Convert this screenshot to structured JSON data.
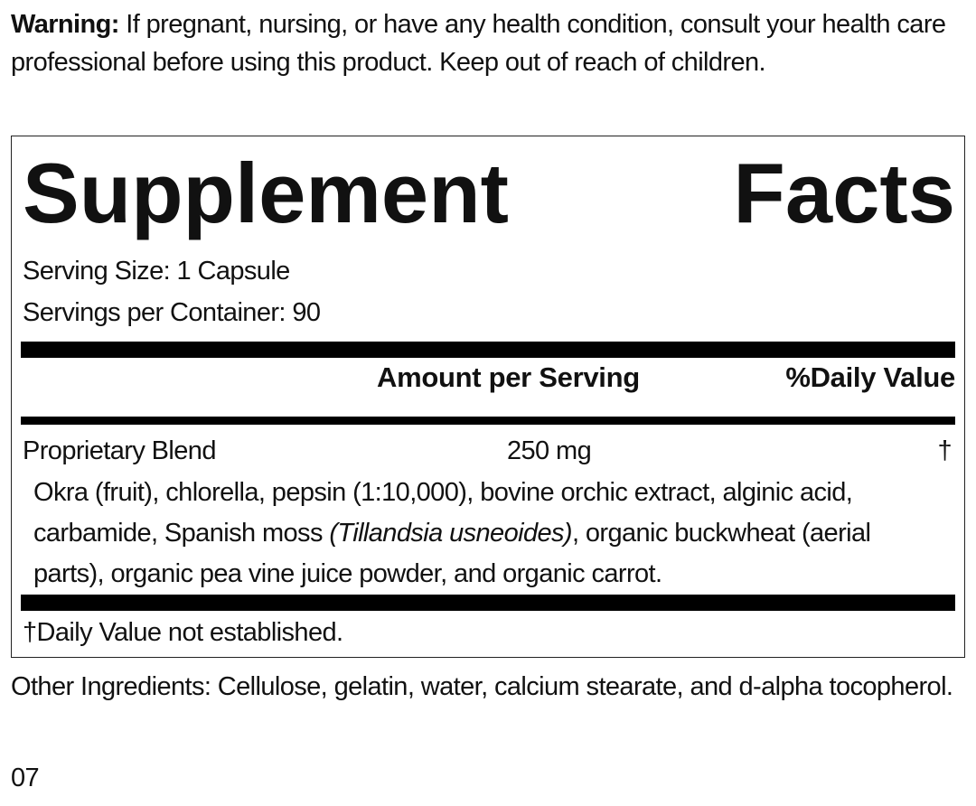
{
  "warning": {
    "label": "Warning:",
    "text": "If pregnant, nursing, or have any health condition, consult your health care professional before using this product. Keep out of reach of children."
  },
  "facts": {
    "title": "Supplement Facts",
    "serving_size": "Serving Size: 1 Capsule",
    "servings_per_container": "Servings per Container: 90",
    "columns": [
      "Amount per Serving",
      "%Daily Value"
    ],
    "rows": [
      {
        "name": "Proprietary Blend",
        "amount": "250 mg",
        "daily_value": "†",
        "ingredients": [
          "Okra (fruit), chlorella, pepsin (1:10,000), bovine orchic extract, alginic acid, carbamide, Spanish moss ",
          "(Tillandsia usneoides)",
          ", organic buckwheat (aerial parts), organic pea vine juice powder, and organic carrot."
        ]
      }
    ],
    "footnote": "†Daily Value not established."
  },
  "other_ingredients": "Other Ingredients: Cellulose, gelatin, water, calcium stearate, and d-alpha tocopherol.",
  "code": "07"
}
